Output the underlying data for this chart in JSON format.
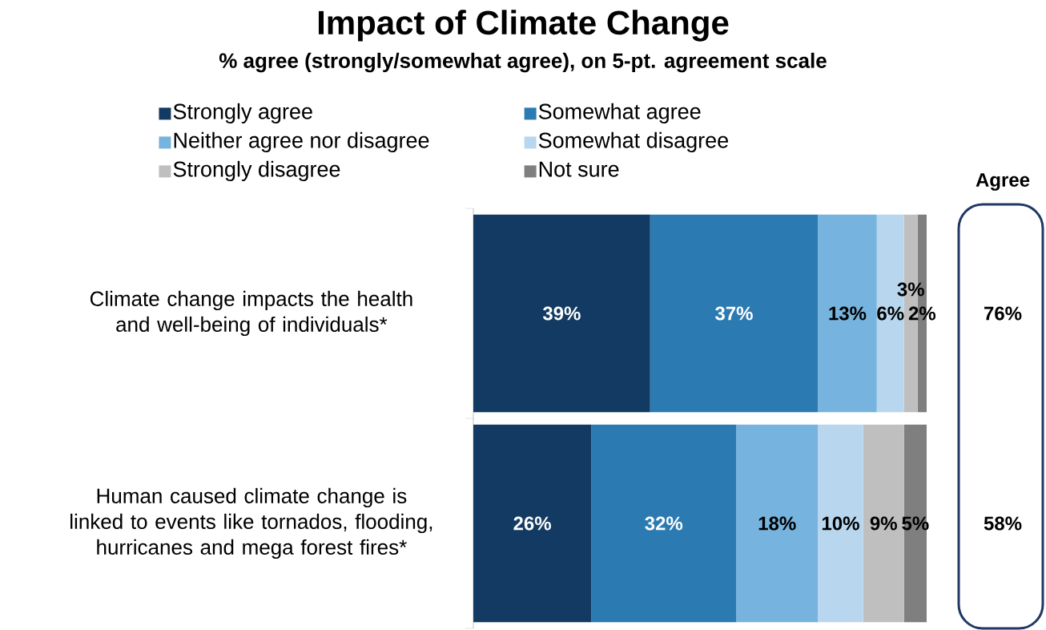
{
  "chart_data": {
    "type": "bar",
    "orientation": "horizontal",
    "stacked": true,
    "title": "Impact of Climate Change",
    "subtitle": "% agree (strongly/somewhat agree), on 5-pt. agreement scale",
    "categories": [
      "Climate change impacts the health and well-being of individuals*",
      "Human caused climate change is linked to events like tornados, flooding, hurricanes and mega forest fires*"
    ],
    "series": [
      {
        "name": "Strongly agree",
        "color": "#133A62",
        "values": [
          39,
          26
        ],
        "value_labels": [
          "39%",
          "26%"
        ]
      },
      {
        "name": "Somewhat agree",
        "color": "#2B7BB2",
        "values": [
          37,
          32
        ],
        "value_labels": [
          "37%",
          "32%"
        ]
      },
      {
        "name": "Neither agree nor disagree",
        "color": "#76B3DE",
        "values": [
          13,
          18
        ],
        "value_labels": [
          "13%",
          "18%"
        ]
      },
      {
        "name": "Somewhat disagree",
        "color": "#B8D7EE",
        "values": [
          6,
          10
        ],
        "value_labels": [
          "6%",
          "10%"
        ]
      },
      {
        "name": "Strongly disagree",
        "color": "#BFBFBF",
        "values": [
          3,
          9
        ],
        "value_labels": [
          "3%",
          "9%"
        ]
      },
      {
        "name": "Not sure",
        "color": "#7F7F7F",
        "values": [
          2,
          5
        ],
        "value_labels": [
          "2%",
          "5%"
        ]
      }
    ],
    "legend": "top",
    "tick_labels": "y",
    "annotations": [
      "Agree",
      "76%",
      "58%"
    ]
  }
}
